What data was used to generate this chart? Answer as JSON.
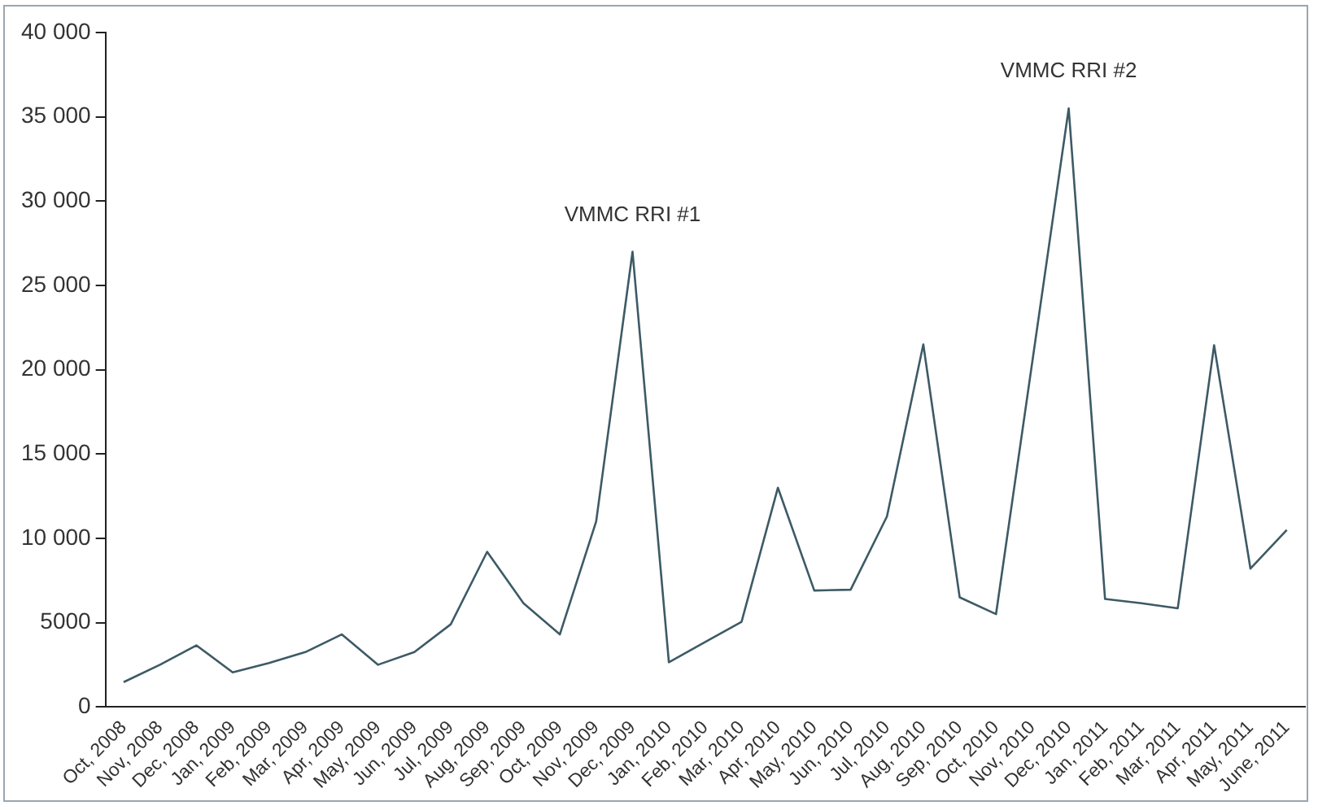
{
  "chart_data": {
    "type": "line",
    "categories": [
      "Oct, 2008",
      "Nov, 2008",
      "Dec, 2008",
      "Jan, 2009",
      "Feb, 2009",
      "Mar, 2009",
      "Apr, 2009",
      "May, 2009",
      "Jun, 2009",
      "Jul, 2009",
      "Aug, 2009",
      "Sep, 2009",
      "Oct, 2009",
      "Nov, 2009",
      "Dec, 2009",
      "Jan, 2010",
      "Feb, 2010",
      "Mar, 2010",
      "Apr, 2010",
      "May, 2010",
      "Jun, 2010",
      "Jul, 2010",
      "Aug, 2010",
      "Sep, 2010",
      "Oct, 2010",
      "Nov, 2010",
      "Dec, 2010",
      "Jan, 2011",
      "Feb, 2011",
      "Mar, 2011",
      "Apr, 2011",
      "May, 2011",
      "June, 2011"
    ],
    "series": [
      {
        "color": "#3d5a66",
        "values": [
          1470,
          2500,
          3650,
          2050,
          2600,
          3250,
          4300,
          2500,
          3250,
          4900,
          9200,
          6150,
          4300,
          11000,
          27000,
          2650,
          3850,
          5050,
          13000,
          6900,
          6950,
          11300,
          21500,
          6500,
          5500,
          20500,
          35500,
          6400,
          6150,
          5850,
          21450,
          8200,
          10500
        ]
      }
    ],
    "ylim": [
      0,
      40000
    ],
    "yticks": [
      0,
      5000,
      {
        "value": 10000,
        "label": "10 000"
      },
      {
        "value": 15000,
        "label": "15 000"
      },
      {
        "value": 20000,
        "label": "20 000"
      },
      {
        "value": 25000,
        "label": "25 000"
      },
      {
        "value": 30000,
        "label": "30 000"
      },
      {
        "value": 35000,
        "label": "35 000"
      },
      {
        "value": 40000,
        "label": "40 000"
      }
    ],
    "annotations": [
      {
        "text": "VMMC RRI #1",
        "x": "Dec, 2009",
        "y": 27000
      },
      {
        "text": "VMMC RRI #2",
        "x": "Dec, 2010",
        "y": 35500
      }
    ],
    "grid": false,
    "legend": false,
    "marker": "none",
    "line_style": "solid"
  }
}
